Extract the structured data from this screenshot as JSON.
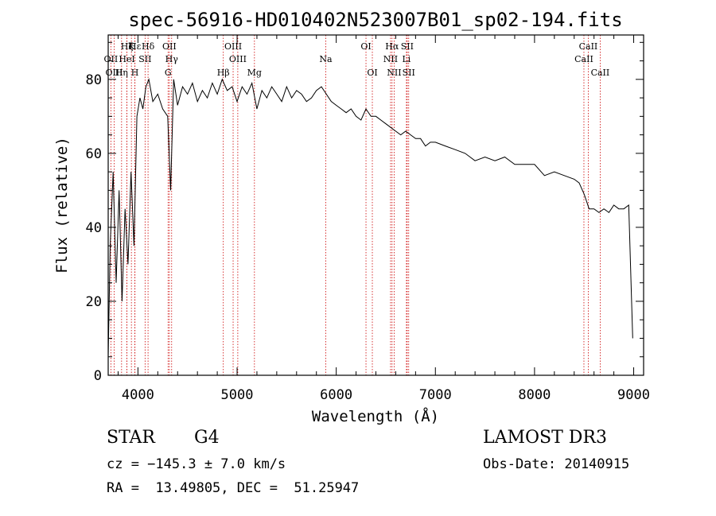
{
  "chart_data": {
    "type": "line",
    "title": "spec-56916-HD010402N523007B01_sp02-194.fits",
    "xlabel": "Wavelength (Å)",
    "ylabel": "Flux (relative)",
    "xlim": [
      3700,
      9100
    ],
    "ylim": [
      0,
      92
    ],
    "xticks": [
      4000,
      5000,
      6000,
      7000,
      8000,
      9000
    ],
    "yticks": [
      0,
      20,
      40,
      60,
      80
    ],
    "series": [
      {
        "name": "spectrum",
        "x": [
          3700,
          3720,
          3750,
          3780,
          3810,
          3840,
          3870,
          3900,
          3930,
          3960,
          3990,
          4020,
          4050,
          4080,
          4110,
          4150,
          4200,
          4250,
          4300,
          4330,
          4360,
          4400,
          4450,
          4500,
          4550,
          4600,
          4650,
          4700,
          4750,
          4800,
          4850,
          4900,
          4950,
          5000,
          5050,
          5100,
          5150,
          5200,
          5250,
          5300,
          5350,
          5400,
          5450,
          5500,
          5550,
          5600,
          5650,
          5700,
          5750,
          5800,
          5850,
          5900,
          5950,
          6000,
          6050,
          6100,
          6150,
          6200,
          6250,
          6300,
          6350,
          6400,
          6450,
          6500,
          6550,
          6600,
          6650,
          6700,
          6750,
          6800,
          6850,
          6900,
          6950,
          7000,
          7100,
          7200,
          7300,
          7400,
          7500,
          7600,
          7700,
          7800,
          7900,
          8000,
          8100,
          8200,
          8300,
          8400,
          8450,
          8500,
          8550,
          8600,
          8650,
          8700,
          8750,
          8800,
          8850,
          8900,
          8950,
          8990
        ],
        "y": [
          5,
          35,
          55,
          25,
          50,
          20,
          45,
          30,
          55,
          35,
          70,
          75,
          72,
          78,
          80,
          74,
          76,
          72,
          70,
          50,
          80,
          73,
          78,
          76,
          79,
          74,
          77,
          75,
          79,
          76,
          80,
          77,
          78,
          74,
          78,
          76,
          79,
          72,
          77,
          75,
          78,
          76,
          74,
          78,
          75,
          77,
          76,
          74,
          75,
          77,
          78,
          76,
          74,
          73,
          72,
          71,
          72,
          70,
          69,
          72,
          70,
          70,
          69,
          68,
          67,
          66,
          65,
          66,
          65,
          64,
          64,
          62,
          63,
          63,
          62,
          61,
          60,
          58,
          59,
          58,
          59,
          57,
          57,
          57,
          54,
          55,
          54,
          53,
          52,
          49,
          45,
          45,
          44,
          45,
          44,
          46,
          45,
          45,
          46,
          10
        ],
        "color": "#000000"
      }
    ],
    "lines": [
      {
        "label": "Hε",
        "wavelength": 3970,
        "row": 1
      },
      {
        "label": "OII",
        "wavelength": 3727,
        "row": 2
      },
      {
        "label": "OIII",
        "wavelength": 3760,
        "row": 3
      },
      {
        "label": "Hζ",
        "wavelength": 3889,
        "row": 1
      },
      {
        "label": "K",
        "wavelength": 3934,
        "row": 1
      },
      {
        "label": "HeI",
        "wavelength": 3889,
        "row": 2
      },
      {
        "label": "SII",
        "wavelength": 4072,
        "row": 2
      },
      {
        "label": "Hη",
        "wavelength": 3835,
        "row": 3
      },
      {
        "label": "H",
        "wavelength": 3969,
        "row": 3
      },
      {
        "label": "Hδ",
        "wavelength": 4102,
        "row": 1
      },
      {
        "label": "OII",
        "wavelength": 4317,
        "row": 1
      },
      {
        "label": "Hγ",
        "wavelength": 4340,
        "row": 2
      },
      {
        "label": "G",
        "wavelength": 4304,
        "row": 3
      },
      {
        "label": "OIII",
        "wavelength": 4960,
        "row": 1
      },
      {
        "label": "OIII",
        "wavelength": 5007,
        "row": 2
      },
      {
        "label": "Hβ",
        "wavelength": 4861,
        "row": 3
      },
      {
        "label": "Mg",
        "wavelength": 5175,
        "row": 3
      },
      {
        "label": "Na",
        "wavelength": 5894,
        "row": 2
      },
      {
        "label": "OI",
        "wavelength": 6300,
        "row": 1
      },
      {
        "label": "OI",
        "wavelength": 6364,
        "row": 3
      },
      {
        "label": "Hα",
        "wavelength": 6563,
        "row": 1
      },
      {
        "label": "SII",
        "wavelength": 6716,
        "row": 1
      },
      {
        "label": "NII",
        "wavelength": 6548,
        "row": 2
      },
      {
        "label": "Li",
        "wavelength": 6708,
        "row": 2
      },
      {
        "label": "NII",
        "wavelength": 6584,
        "row": 3
      },
      {
        "label": "SII",
        "wavelength": 6731,
        "row": 3
      },
      {
        "label": "CaII",
        "wavelength": 8542,
        "row": 1
      },
      {
        "label": "CaII",
        "wavelength": 8498,
        "row": 2
      },
      {
        "label": "CaII",
        "wavelength": 8662,
        "row": 3
      }
    ],
    "grid": false,
    "legend": "none"
  },
  "info": {
    "object_class": "STAR",
    "subclass": "G4",
    "cz": "cz = −145.3 ± 7.0 km/s",
    "coords": "RA =  13.49805, DEC =  51.25947",
    "survey": "LAMOST DR3",
    "obs_date": "Obs-Date: 20140915"
  },
  "colors": {
    "line_marker": "#cc0000",
    "spectrum": "#000000"
  }
}
